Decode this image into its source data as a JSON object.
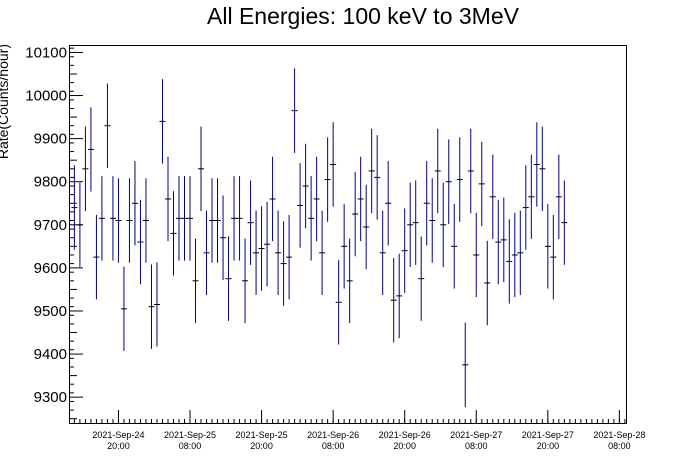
{
  "chart_data": {
    "type": "scatter",
    "title": "All Energies:  100 keV to 3MeV",
    "ylabel": "Rate(Counts/hour)",
    "xlabel": "",
    "xlim_hours": [
      -0.3,
      100.7
    ],
    "ylim": [
      9240,
      10115
    ],
    "y_ticks": [
      9300,
      9400,
      9500,
      9600,
      9700,
      9800,
      9900,
      10000,
      10100
    ],
    "x_ticks": [
      {
        "hour": 8.5,
        "date": "2021-Sep-24",
        "time": "20:00"
      },
      {
        "hour": 21.5,
        "date": "2021-Sep-25",
        "time": "08:00"
      },
      {
        "hour": 34.5,
        "date": "2021-Sep-25",
        "time": "20:00"
      },
      {
        "hour": 47.5,
        "date": "2021-Sep-26",
        "time": "08:00"
      },
      {
        "hour": 60.5,
        "date": "2021-Sep-26",
        "time": "20:00"
      },
      {
        "hour": 73.5,
        "date": "2021-Sep-27",
        "time": "08:00"
      },
      {
        "hour": 86.5,
        "date": "2021-Sep-27",
        "time": "20:00"
      },
      {
        "hour": 99.5,
        "date": "2021-Sep-28",
        "time": "08:00"
      }
    ],
    "grid": false,
    "marker_color": "#000080",
    "error": 98,
    "values": [
      9740,
      9700,
      9830,
      9875,
      9625,
      9715,
      9930,
      9715,
      9710,
      9505,
      9710,
      9750,
      9660,
      9710,
      9510,
      9515,
      9940,
      9760,
      9680,
      9715,
      9715,
      9715,
      9570,
      9830,
      9635,
      9710,
      9710,
      9670,
      9575,
      9715,
      9715,
      9570,
      9705,
      9635,
      9645,
      9655,
      9760,
      9635,
      9610,
      9625,
      9965,
      9745,
      9790,
      9715,
      9760,
      9635,
      9805,
      9840,
      9520,
      9650,
      9570,
      9725,
      9760,
      9695,
      9825,
      9810,
      9635,
      9750,
      9525,
      9535,
      9640,
      9700,
      9705,
      9575,
      9750,
      9710,
      9825,
      9700,
      9800,
      9650,
      9805,
      9375,
      9825,
      9630,
      9795,
      9565,
      9765,
      9660,
      9665,
      9615,
      9630,
      9635,
      9740,
      9765,
      9840,
      9830,
      9650,
      9625,
      9765,
      9705
    ]
  }
}
